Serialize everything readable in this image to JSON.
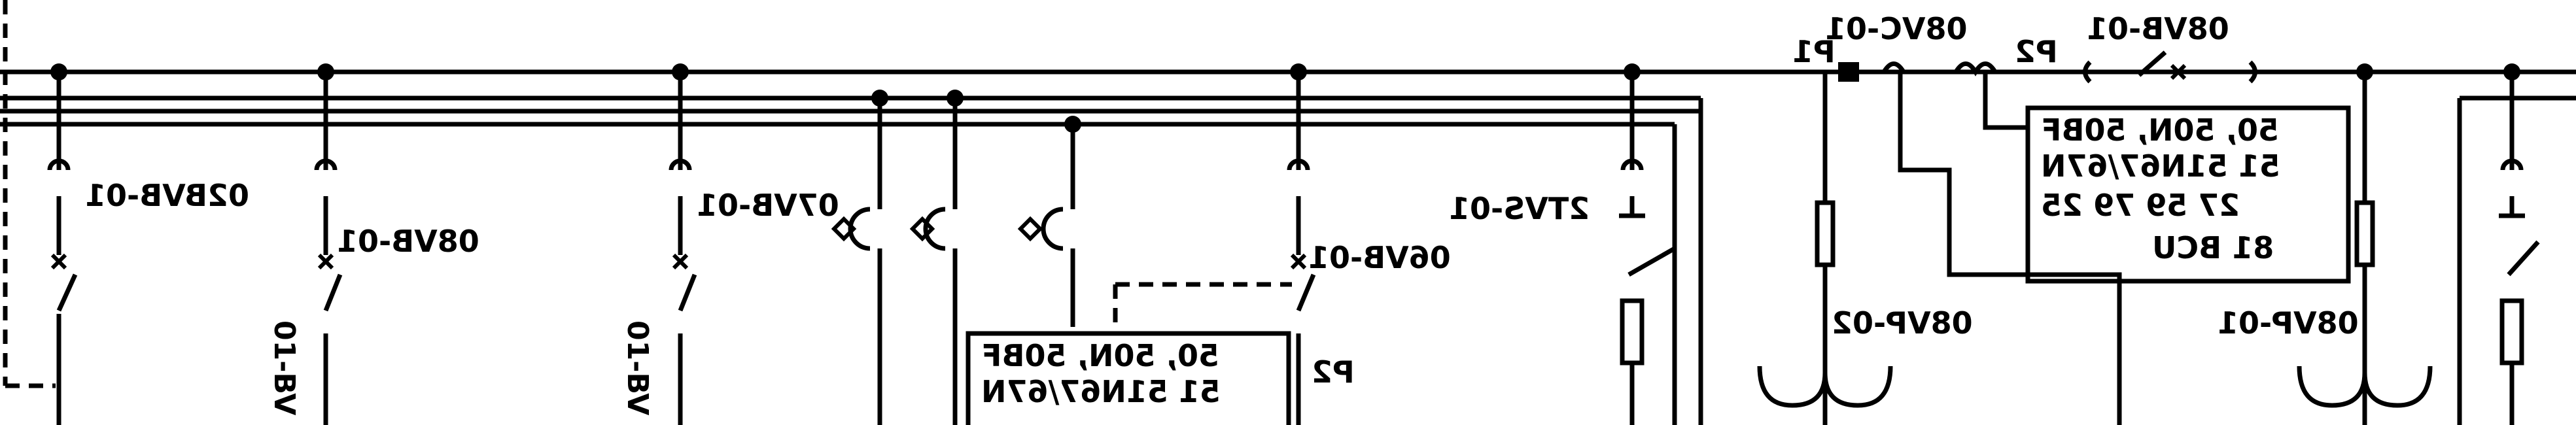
{
  "labels": {
    "top_left_tag": "08VC-01",
    "top_mid_tag": "08VB-01",
    "p1": "P1",
    "p2_top": "P2",
    "p2_mid": "P2",
    "vb02": "02BVB-01",
    "vb08a": "08VB-01",
    "vb07": "07VB-01",
    "vs01": "2TVS-01",
    "vb06": "06VB-01",
    "vp02": "08VP-02",
    "vp01": "08VP-01",
    "vert_left": "01-BV",
    "vert_mid": "01-BV"
  },
  "relay_box_right": {
    "line1": "50, 50N, 50BF",
    "line2": "51  51N67/67N",
    "line3": "27  59  79  25",
    "line4": "81  BCU"
  },
  "relay_box_mid": {
    "line1": "50, 50N, 50BF",
    "line2": "51  51N67/67N"
  }
}
